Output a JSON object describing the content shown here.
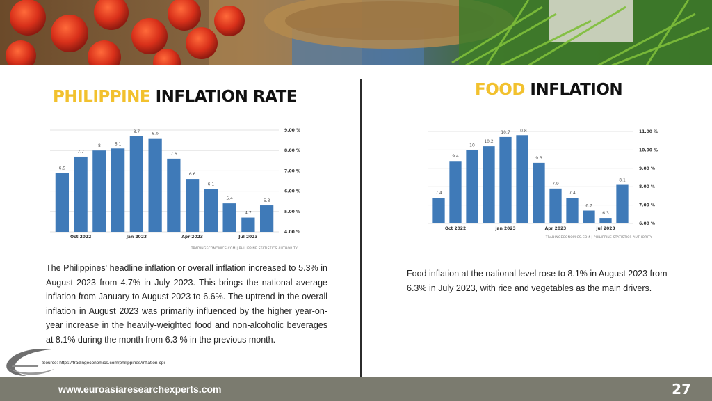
{
  "slide": {
    "left_title_highlight": "PHILIPPINE",
    "left_title_rest": " INFLATION RATE",
    "right_title_highlight": "FOOD",
    "right_title_rest": " INFLATION",
    "left_paragraph": "The Philippines' headline inflation or overall inflation increased to 5.3% in August 2023 from 4.7% in July 2023. This brings the national average inflation from January to August 2023 to 6.6%. The uptrend in the overall inflation in August 2023 was primarily influenced by the higher year-on-year increase in the heavily-weighted food and non-alcoholic beverages at 8.1% during the month from 6.3 % in the previous month.",
    "right_paragraph": "Food inflation at the national level rose to 8.1% in August 2023 from 6.3% in July 2023, with rice and vegetables as the main drivers.",
    "source": "Source: https://tradingeconomics.com/philippines/inflation-cpi",
    "website": "www.euroasiaresearchexperts.com",
    "page_number": "27",
    "accent_color": "#f2c12e",
    "bar_color": "#3f7ab8",
    "footer_color": "#7b7b6f"
  },
  "chart_data": [
    {
      "type": "bar",
      "values": [
        6.9,
        7.7,
        8,
        8.1,
        8.7,
        8.6,
        7.6,
        6.6,
        6.1,
        5.4,
        4.7,
        5.3
      ],
      "value_labels": [
        "6.9",
        "7.7",
        "8",
        "8.1",
        "8.7",
        "8.6",
        "7.6",
        "6.6",
        "6.1",
        "5.4",
        "4.7",
        "5.3"
      ],
      "x_ticks": [
        {
          "index": 1,
          "label": "Oct 2022"
        },
        {
          "index": 4,
          "label": "Jan 2023"
        },
        {
          "index": 7,
          "label": "Apr 2023"
        },
        {
          "index": 10,
          "label": "Jul 2023"
        }
      ],
      "y_ticks": [
        4,
        5,
        6,
        7,
        8,
        9
      ],
      "y_tick_labels": [
        "4.00 %",
        "5.00 %",
        "6.00 %",
        "7.00 %",
        "8.00 %",
        "9.00 %"
      ],
      "ylim": [
        4,
        9
      ],
      "y_axis_position": "right",
      "grid": true,
      "attribution": "TRADINGECONOMICS.COM  |  PHILIPPINE STATISTICS AUTHORITY"
    },
    {
      "type": "bar",
      "values": [
        7.4,
        9.4,
        10,
        10.2,
        10.7,
        10.8,
        9.3,
        7.9,
        7.4,
        6.7,
        6.3,
        8.1
      ],
      "value_labels": [
        "7.4",
        "9.4",
        "10",
        "10.2",
        "10.7",
        "10.8",
        "9.3",
        "7.9",
        "7.4",
        "6.7",
        "6.3",
        "8.1"
      ],
      "x_ticks": [
        {
          "index": 1,
          "label": "Oct 2022"
        },
        {
          "index": 4,
          "label": "Jan 2023"
        },
        {
          "index": 7,
          "label": "Apr 2023"
        },
        {
          "index": 10,
          "label": "Jul 2023"
        }
      ],
      "y_ticks": [
        6,
        7,
        8,
        9,
        10,
        11
      ],
      "y_tick_labels": [
        "6.00 %",
        "7.00 %",
        "8.00 %",
        "9.00 %",
        "10.00 %",
        "11.00 %"
      ],
      "ylim": [
        6,
        11
      ],
      "y_axis_position": "right",
      "grid": true,
      "attribution": "TRADINGECONOMICS.COM  |  PHILIPPINE STATISTICS AUTHORITY"
    }
  ]
}
